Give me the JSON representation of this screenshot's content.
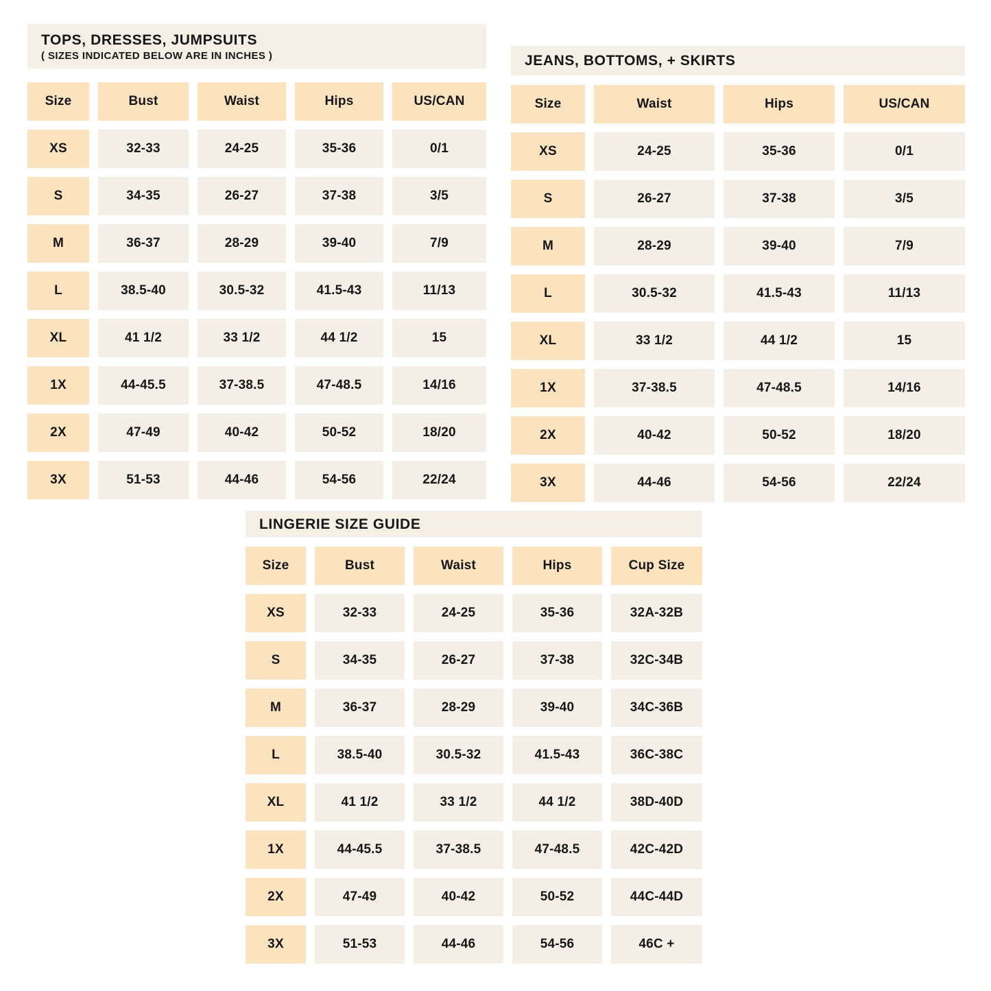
{
  "colors": {
    "page_bg": "#ffffff",
    "banner_bg": "#f4f0e6",
    "header_bg": "#fbe3bf",
    "cell_bg": "#f4efe6",
    "text": "#161616"
  },
  "tables": [
    {
      "id": "tops",
      "title": "TOPS, DRESSES, JUMPSUITS",
      "subtitle": "( SIZES INDICATED BELOW ARE IN INCHES )",
      "columns": [
        "Size",
        "Bust",
        "Waist",
        "Hips",
        "US/CAN"
      ],
      "rows": [
        [
          "XS",
          "32-33",
          "24-25",
          "35-36",
          "0/1"
        ],
        [
          "S",
          "34-35",
          "26-27",
          "37-38",
          "3/5"
        ],
        [
          "M",
          "36-37",
          "28-29",
          "39-40",
          "7/9"
        ],
        [
          "L",
          "38.5-40",
          "30.5-32",
          "41.5-43",
          "11/13"
        ],
        [
          "XL",
          "41 1/2",
          "33 1/2",
          "44 1/2",
          "15"
        ],
        [
          "1X",
          "44-45.5",
          "37-38.5",
          "47-48.5",
          "14/16"
        ],
        [
          "2X",
          "47-49",
          "40-42",
          "50-52",
          "18/20"
        ],
        [
          "3X",
          "51-53",
          "44-46",
          "54-56",
          "22/24"
        ]
      ]
    },
    {
      "id": "jeans",
      "title": "JEANS, BOTTOMS, + SKIRTS",
      "subtitle": "",
      "columns": [
        "Size",
        "Waist",
        "Hips",
        "US/CAN"
      ],
      "rows": [
        [
          "XS",
          "24-25",
          "35-36",
          "0/1"
        ],
        [
          "S",
          "26-27",
          "37-38",
          "3/5"
        ],
        [
          "M",
          "28-29",
          "39-40",
          "7/9"
        ],
        [
          "L",
          "30.5-32",
          "41.5-43",
          "11/13"
        ],
        [
          "XL",
          "33 1/2",
          "44 1/2",
          "15"
        ],
        [
          "1X",
          "37-38.5",
          "47-48.5",
          "14/16"
        ],
        [
          "2X",
          "40-42",
          "50-52",
          "18/20"
        ],
        [
          "3X",
          "44-46",
          "54-56",
          "22/24"
        ]
      ]
    },
    {
      "id": "lingerie",
      "title": "LINGERIE SIZE GUIDE",
      "subtitle": "",
      "columns": [
        "Size",
        "Bust",
        "Waist",
        "Hips",
        "Cup Size"
      ],
      "rows": [
        [
          "XS",
          "32-33",
          "24-25",
          "35-36",
          "32A-32B"
        ],
        [
          "S",
          "34-35",
          "26-27",
          "37-38",
          "32C-34B"
        ],
        [
          "M",
          "36-37",
          "28-29",
          "39-40",
          "34C-36B"
        ],
        [
          "L",
          "38.5-40",
          "30.5-32",
          "41.5-43",
          "36C-38C"
        ],
        [
          "XL",
          "41 1/2",
          "33 1/2",
          "44 1/2",
          "38D-40D"
        ],
        [
          "1X",
          "44-45.5",
          "37-38.5",
          "47-48.5",
          "42C-42D"
        ],
        [
          "2X",
          "47-49",
          "40-42",
          "50-52",
          "44C-44D"
        ],
        [
          "3X",
          "51-53",
          "44-46",
          "54-56",
          "46C +"
        ]
      ]
    }
  ]
}
